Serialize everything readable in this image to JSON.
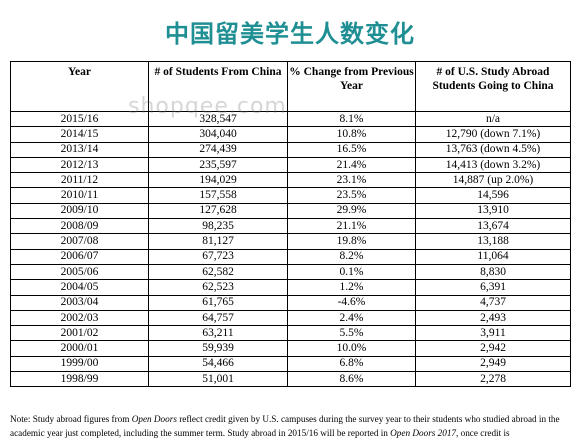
{
  "title": "中国留美学生人数变化",
  "watermark": "shopqee.com",
  "table": {
    "headers": [
      "Year",
      "# of Students From China",
      "% Change from Previous Year",
      "# of U.S. Study Abroad Students Going to China"
    ],
    "rows": [
      [
        "2015/16",
        "328,547",
        "8.1%",
        "n/a"
      ],
      [
        "2014/15",
        "304,040",
        "10.8%",
        "12,790 (down 7.1%)"
      ],
      [
        "2013/14",
        "274,439",
        "16.5%",
        "13,763 (down 4.5%)"
      ],
      [
        "2012/13",
        "235,597",
        "21.4%",
        "14,413 (down 3.2%)"
      ],
      [
        "2011/12",
        "194,029",
        "23.1%",
        "14,887 (up 2.0%)"
      ],
      [
        "2010/11",
        "157,558",
        "23.5%",
        "14,596"
      ],
      [
        "2009/10",
        "127,628",
        "29.9%",
        "13,910"
      ],
      [
        "2008/09",
        "98,235",
        "21.1%",
        "13,674"
      ],
      [
        "2007/08",
        "81,127",
        "19.8%",
        "13,188"
      ],
      [
        "2006/07",
        "67,723",
        "8.2%",
        "11,064"
      ],
      [
        "2005/06",
        "62,582",
        "0.1%",
        "8,830"
      ],
      [
        "2004/05",
        "62,523",
        "1.2%",
        "6,391"
      ],
      [
        "2003/04",
        "61,765",
        "-4.6%",
        "4,737"
      ],
      [
        "2002/03",
        "64,757",
        "2.4%",
        "2,493"
      ],
      [
        "2001/02",
        "63,211",
        "5.5%",
        "3,911"
      ],
      [
        "2000/01",
        "59,939",
        "10.0%",
        "2,942"
      ],
      [
        "1999/00",
        "54,466",
        "6.8%",
        "2,949"
      ],
      [
        "1998/99",
        "51,001",
        "8.6%",
        "2,278"
      ]
    ]
  },
  "note": {
    "p1": "Note: Study abroad figures from ",
    "i1": "Open Doors",
    "p2": " reflect credit given by U.S. campuses during the survey year to their students who studied abroad in the academic year just completed, including the summer term. Study abroad in 2015/16 will be reported in ",
    "i2": "Open Doors 2017",
    "p3": ", once credit is"
  }
}
